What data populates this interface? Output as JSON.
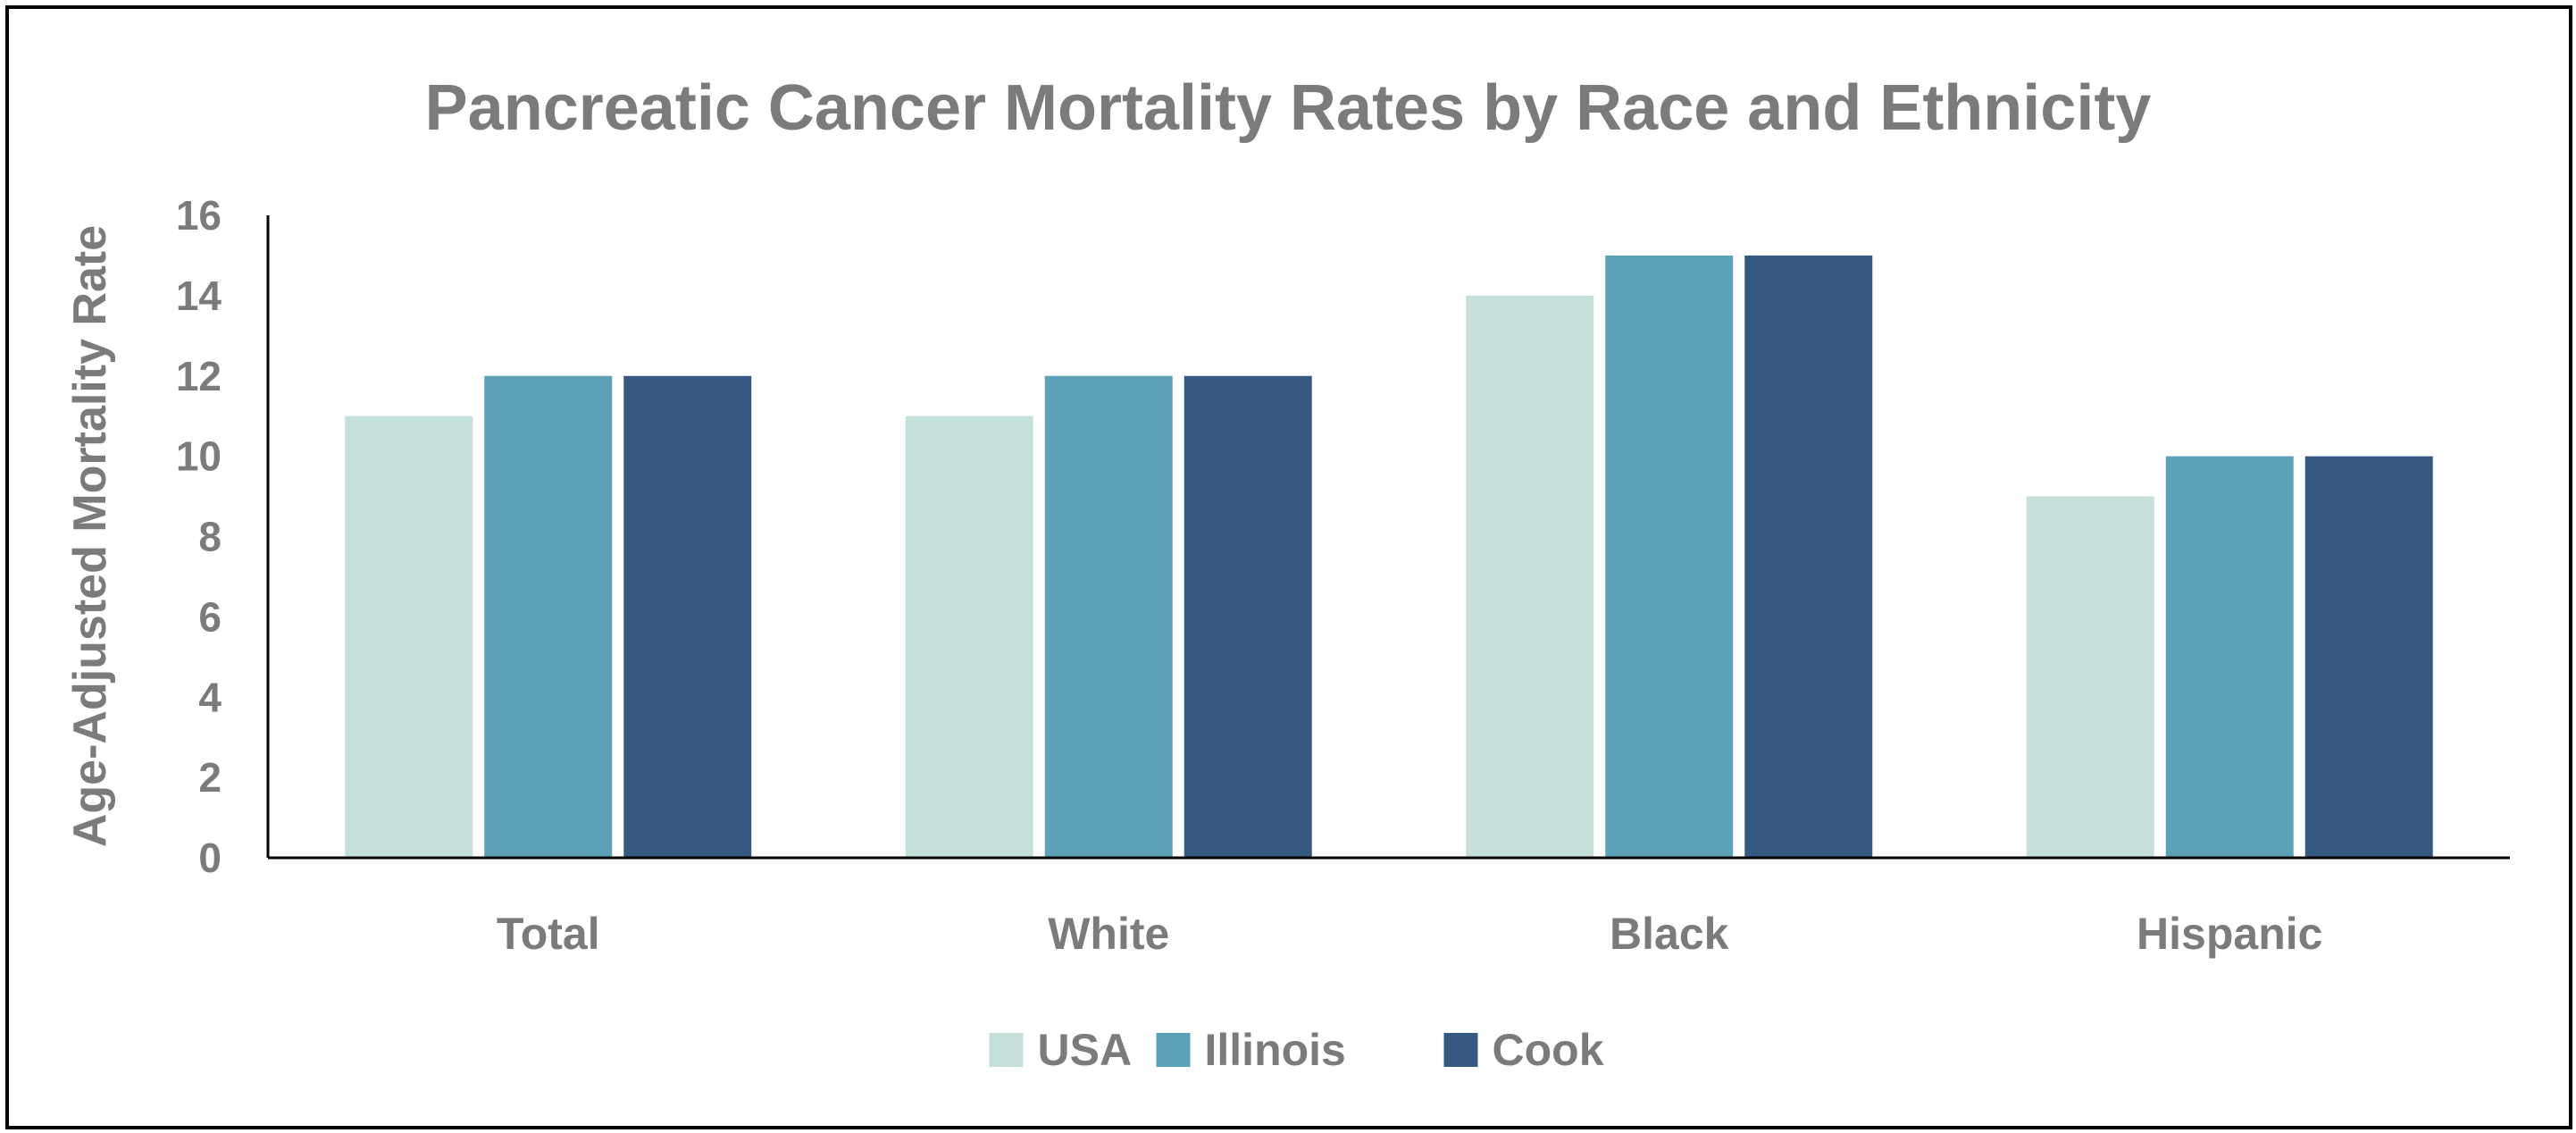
{
  "chart_data": {
    "type": "bar",
    "title": "Pancreatic Cancer Mortality Rates by Race and Ethnicity",
    "xlabel": "",
    "ylabel": "Age-Adjusted Mortality Rate",
    "ylim": [
      0,
      16
    ],
    "yticks": [
      0,
      2,
      4,
      6,
      8,
      10,
      12,
      14,
      16
    ],
    "categories": [
      "Total",
      "White",
      "Black",
      "Hispanic"
    ],
    "series": [
      {
        "name": "USA",
        "color": "#c5e0da",
        "values": [
          11,
          11,
          14,
          9
        ]
      },
      {
        "name": "Illinois",
        "color": "#5ca1b8",
        "values": [
          12,
          12,
          15,
          10
        ]
      },
      {
        "name": "Cook",
        "color": "#365981",
        "values": [
          12,
          12,
          15,
          10
        ]
      }
    ],
    "legend": "bottom-center",
    "grid": false
  }
}
